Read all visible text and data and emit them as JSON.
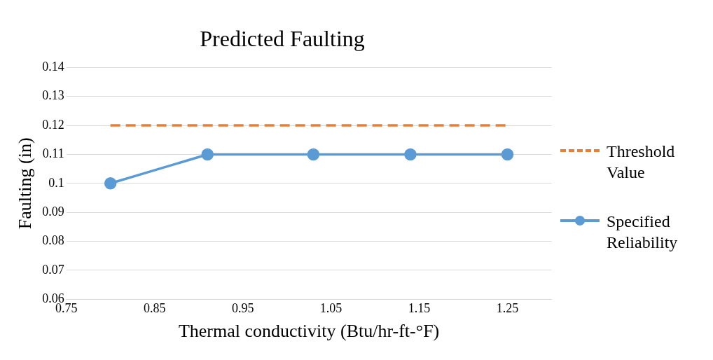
{
  "chart_data": {
    "type": "line",
    "title": "Predicted Faulting",
    "xlabel": "Thermal conductivity (Btu/hr-ft-°F)",
    "ylabel": "Faulting (in)",
    "x": [
      0.8,
      0.91,
      1.03,
      1.14,
      1.25
    ],
    "series": [
      {
        "name": "Threshold Value",
        "color": "#ed7d31",
        "values": [
          0.12,
          0.12,
          0.12,
          0.12,
          0.12
        ],
        "line_style": "dashed",
        "marker": "none"
      },
      {
        "name": "Specified Reliability",
        "color": "#5b9bd5",
        "values": [
          0.1,
          0.11,
          0.11,
          0.11,
          0.11
        ],
        "line_style": "solid",
        "marker": "circle"
      }
    ],
    "xlim": [
      0.75,
      1.3
    ],
    "xticks": [
      0.75,
      0.85,
      0.95,
      1.05,
      1.15,
      1.25
    ],
    "ylim": [
      0.06,
      0.14
    ],
    "yticks": [
      0.06,
      0.07,
      0.08,
      0.09,
      0.1,
      0.11,
      0.12,
      0.13,
      0.14
    ],
    "grid": "y",
    "legend": "right"
  }
}
